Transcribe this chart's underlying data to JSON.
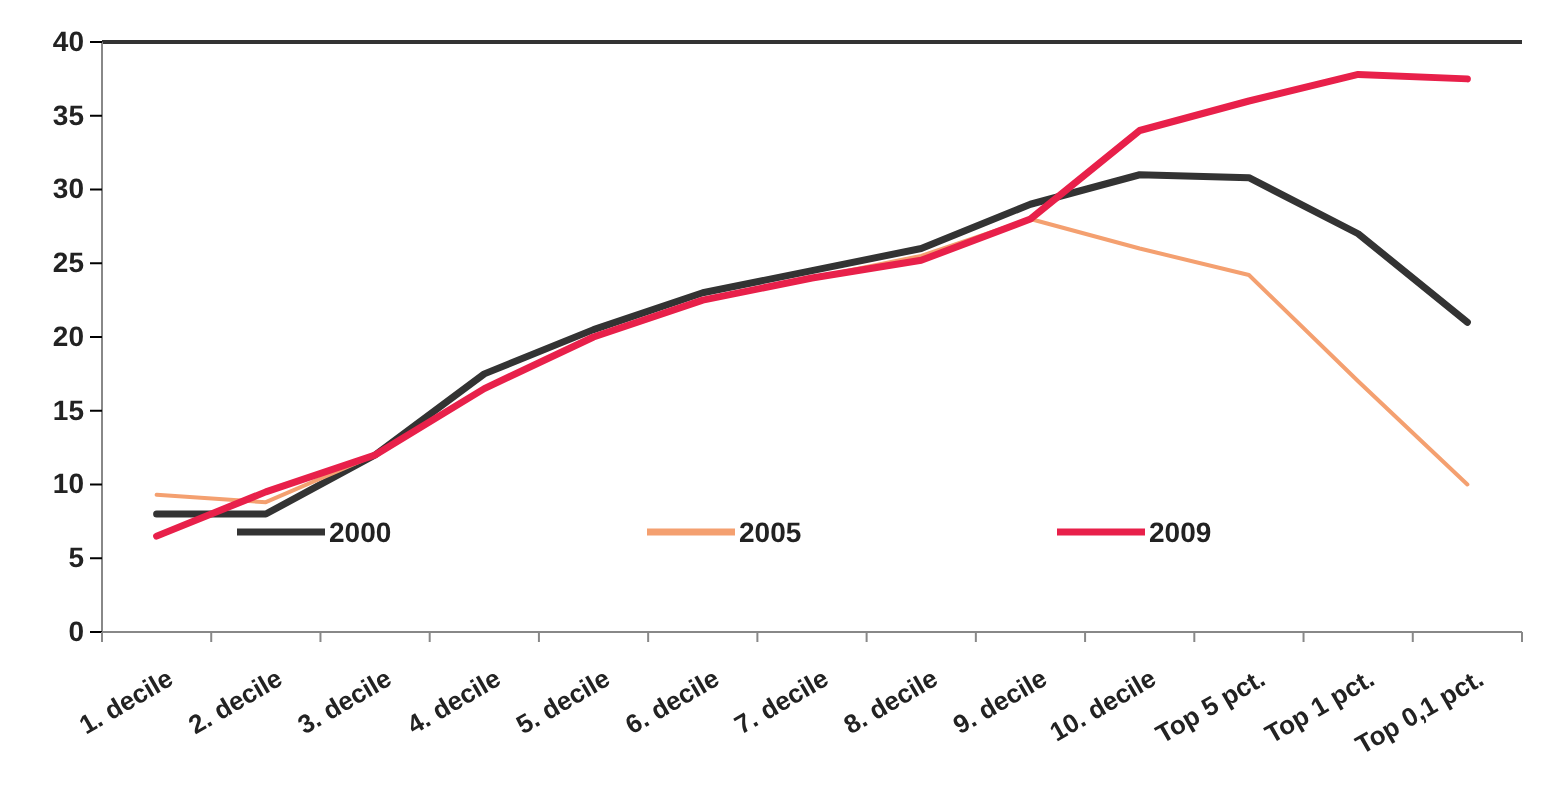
{
  "chart_data": {
    "type": "line",
    "categories": [
      "1. decile",
      "2. decile",
      "3. decile",
      "4. decile",
      "5. decile",
      "6. decile",
      "7. decile",
      "8. decile",
      "9. decile",
      "10. decile",
      "Top 5 pct.",
      "Top 1 pct.",
      "Top 0,1 pct."
    ],
    "series": [
      {
        "name": "2000",
        "color": "#333333",
        "values": [
          8,
          8,
          12,
          17.5,
          20.5,
          23,
          24.5,
          26,
          29,
          31,
          30.8,
          27,
          21
        ]
      },
      {
        "name": "2005",
        "color": "#f4a070",
        "values": [
          9.3,
          8.8,
          12,
          16.5,
          20,
          22.5,
          24,
          25.5,
          28,
          26,
          24.2,
          17,
          10
        ]
      },
      {
        "name": "2009",
        "color": "#e8204a",
        "values": [
          6.5,
          9.5,
          12,
          16.5,
          20,
          22.5,
          24,
          25.2,
          28,
          34,
          36,
          37.8,
          37.5
        ]
      }
    ],
    "ylim": [
      0,
      40
    ],
    "yticks": [
      0,
      5,
      10,
      15,
      20,
      25,
      30,
      35,
      40
    ],
    "grid": false,
    "legend": "bottom",
    "marker": "none",
    "line_style": "solid"
  }
}
